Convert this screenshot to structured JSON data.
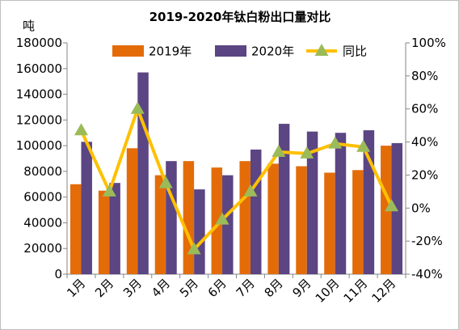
{
  "chart_data": {
    "type": "bar",
    "title": "2019-2020年钛白粉出口量对比",
    "y_left_unit": "吨",
    "categories": [
      "1月",
      "2月",
      "3月",
      "4月",
      "5月",
      "6月",
      "7月",
      "8月",
      "9月",
      "10月",
      "11月",
      "12月"
    ],
    "series": [
      {
        "name": "2019年",
        "type": "bar",
        "axis": "left",
        "color": "#e36c09",
        "values": [
          70000,
          65000,
          98000,
          77000,
          88000,
          83000,
          88000,
          86000,
          84000,
          79000,
          81000,
          100000
        ]
      },
      {
        "name": "2020年",
        "type": "bar",
        "axis": "left",
        "color": "#5b4583",
        "values": [
          103000,
          71000,
          157000,
          88000,
          66000,
          77000,
          97000,
          117000,
          111000,
          110000,
          112000,
          102000
        ]
      },
      {
        "name": "同比",
        "type": "line",
        "axis": "right",
        "color": "#ffc000",
        "marker_color": "#9bbb59",
        "values": [
          0.47,
          0.1,
          0.6,
          0.15,
          -0.25,
          -0.07,
          0.1,
          0.34,
          0.33,
          0.39,
          0.37,
          0.01
        ]
      }
    ],
    "y_left": {
      "min": 0,
      "max": 180000,
      "ticks": [
        "0",
        "20000",
        "40000",
        "60000",
        "80000",
        "100000",
        "120000",
        "140000",
        "160000",
        "180000"
      ]
    },
    "y_right": {
      "min": -0.4,
      "max": 1.0,
      "ticks": [
        "-40%",
        "-20%",
        "0%",
        "20%",
        "40%",
        "60%",
        "80%",
        "100%"
      ]
    },
    "legend_position": "top",
    "grid": false
  }
}
